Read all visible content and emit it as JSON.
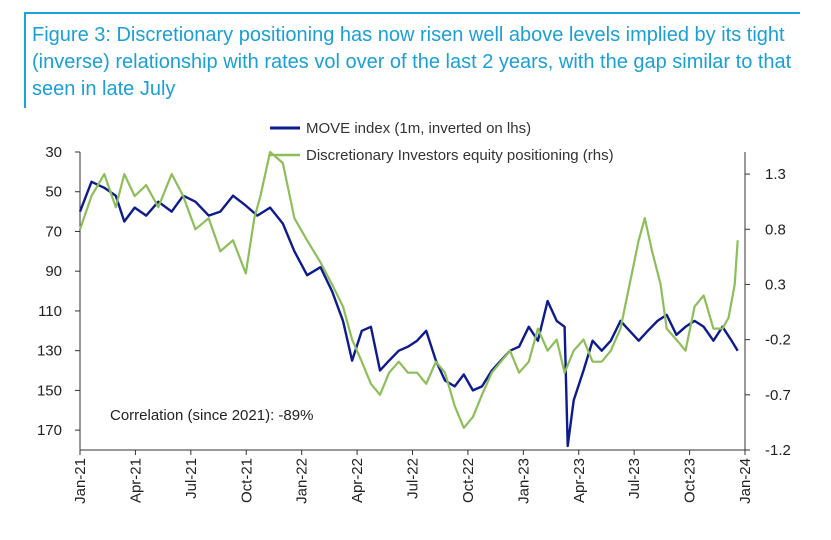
{
  "figure_title": "Figure 3: Discretionary positioning has now risen well above levels implied by its tight (inverse) relationship with rates vol over of the last 2 years, with the gap similar to that seen in late July",
  "colors": {
    "title": "#1a9fd6",
    "frame": "#1aa3d9",
    "move": "#0d1b8c",
    "disc": "#8cbf5a"
  },
  "chart_data": {
    "type": "line",
    "title": "",
    "legend_position": "top",
    "x_ticks": [
      "Jan-21",
      "Apr-21",
      "Jul-21",
      "Oct-21",
      "Jan-22",
      "Apr-22",
      "Jul-22",
      "Oct-22",
      "Jan-23",
      "Apr-23",
      "Jul-23",
      "Oct-23",
      "Jan-24"
    ],
    "y_left": {
      "ticks": [
        30,
        50,
        70,
        90,
        110,
        130,
        150,
        170
      ],
      "range": [
        30,
        180
      ],
      "inverted": true
    },
    "y_right": {
      "ticks": [
        1.3,
        0.8,
        0.3,
        -0.2,
        -0.7,
        -1.2
      ],
      "range": [
        -1.2,
        1.5
      ]
    },
    "annotation": "Correlation (since 2021): -89%",
    "grid": false,
    "series": [
      {
        "name": "MOVE index (1m, inverted on lhs)",
        "axis": "left",
        "x": [
          "2021-01-01",
          "2021-01-20",
          "2021-02-10",
          "2021-03-01",
          "2021-03-15",
          "2021-04-01",
          "2021-04-20",
          "2021-05-10",
          "2021-06-01",
          "2021-06-20",
          "2021-07-10",
          "2021-08-01",
          "2021-08-20",
          "2021-09-10",
          "2021-10-01",
          "2021-10-20",
          "2021-11-10",
          "2021-12-01",
          "2021-12-20",
          "2022-01-10",
          "2022-02-01",
          "2022-02-20",
          "2022-03-10",
          "2022-03-25",
          "2022-04-10",
          "2022-04-25",
          "2022-05-10",
          "2022-05-25",
          "2022-06-10",
          "2022-06-25",
          "2022-07-10",
          "2022-07-25",
          "2022-08-10",
          "2022-08-25",
          "2022-09-10",
          "2022-09-25",
          "2022-10-10",
          "2022-10-25",
          "2022-11-10",
          "2022-11-25",
          "2022-12-10",
          "2022-12-25",
          "2023-01-10",
          "2023-01-25",
          "2023-02-10",
          "2023-02-25",
          "2023-03-10",
          "2023-03-15",
          "2023-03-25",
          "2023-04-10",
          "2023-04-25",
          "2023-05-10",
          "2023-05-25",
          "2023-06-10",
          "2023-06-25",
          "2023-07-10",
          "2023-07-25",
          "2023-08-10",
          "2023-08-25",
          "2023-09-10",
          "2023-09-25",
          "2023-10-10",
          "2023-10-25",
          "2023-11-10",
          "2023-11-25",
          "2023-12-10",
          "2023-12-20"
        ],
        "values": [
          60,
          45,
          48,
          52,
          65,
          58,
          62,
          55,
          60,
          52,
          55,
          62,
          60,
          52,
          57,
          62,
          58,
          66,
          80,
          92,
          88,
          100,
          115,
          135,
          120,
          118,
          140,
          135,
          130,
          128,
          125,
          120,
          135,
          145,
          148,
          142,
          150,
          148,
          140,
          135,
          130,
          128,
          118,
          125,
          105,
          115,
          118,
          178,
          155,
          140,
          125,
          130,
          125,
          115,
          120,
          125,
          120,
          115,
          112,
          122,
          118,
          115,
          118,
          125,
          118,
          125,
          130
        ],
        "color": "#0d1b8c"
      },
      {
        "name": "Discretionary Investors equity positioning (rhs)",
        "axis": "right",
        "x": [
          "2021-01-01",
          "2021-01-20",
          "2021-02-10",
          "2021-03-01",
          "2021-03-15",
          "2021-04-01",
          "2021-04-20",
          "2021-05-10",
          "2021-06-01",
          "2021-06-20",
          "2021-07-10",
          "2021-08-01",
          "2021-08-20",
          "2021-09-10",
          "2021-10-01",
          "2021-10-15",
          "2021-10-25",
          "2021-11-10",
          "2021-12-01",
          "2021-12-20",
          "2022-01-10",
          "2022-02-01",
          "2022-02-20",
          "2022-03-10",
          "2022-03-25",
          "2022-04-10",
          "2022-04-25",
          "2022-05-10",
          "2022-05-25",
          "2022-06-10",
          "2022-06-25",
          "2022-07-10",
          "2022-07-25",
          "2022-08-10",
          "2022-08-25",
          "2022-09-10",
          "2022-09-25",
          "2022-10-10",
          "2022-10-25",
          "2022-11-10",
          "2022-11-25",
          "2022-12-10",
          "2022-12-25",
          "2023-01-10",
          "2023-01-25",
          "2023-02-10",
          "2023-02-25",
          "2023-03-10",
          "2023-03-25",
          "2023-04-10",
          "2023-04-25",
          "2023-05-10",
          "2023-05-25",
          "2023-06-10",
          "2023-06-25",
          "2023-07-10",
          "2023-07-20",
          "2023-08-01",
          "2023-08-15",
          "2023-08-25",
          "2023-09-10",
          "2023-09-25",
          "2023-10-10",
          "2023-10-25",
          "2023-11-10",
          "2023-11-25",
          "2023-12-05",
          "2023-12-15",
          "2023-12-20"
        ],
        "values": [
          0.8,
          1.1,
          1.3,
          1.0,
          1.3,
          1.1,
          1.2,
          1.0,
          1.3,
          1.1,
          0.8,
          0.9,
          0.6,
          0.7,
          0.4,
          0.9,
          1.1,
          1.5,
          1.4,
          0.9,
          0.7,
          0.5,
          0.3,
          0.1,
          -0.2,
          -0.4,
          -0.6,
          -0.7,
          -0.5,
          -0.4,
          -0.5,
          -0.5,
          -0.6,
          -0.4,
          -0.5,
          -0.8,
          -1.0,
          -0.9,
          -0.7,
          -0.5,
          -0.4,
          -0.3,
          -0.5,
          -0.4,
          -0.1,
          -0.3,
          -0.2,
          -0.5,
          -0.3,
          -0.2,
          -0.4,
          -0.4,
          -0.3,
          -0.1,
          0.3,
          0.7,
          0.9,
          0.6,
          0.3,
          -0.1,
          -0.2,
          -0.3,
          0.1,
          0.2,
          -0.1,
          -0.1,
          0.0,
          0.3,
          0.7
        ],
        "color": "#8cbf5a"
      }
    ]
  }
}
